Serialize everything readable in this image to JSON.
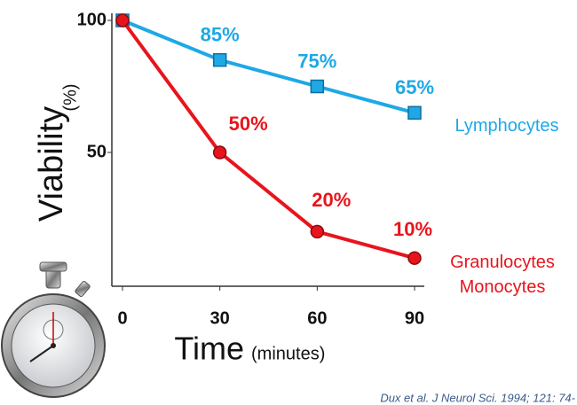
{
  "chart_data": {
    "type": "line",
    "y_label": "Viability",
    "y_unit": "(%)",
    "x_label": "Time",
    "x_unit": "(minutes)",
    "x": [
      0,
      30,
      60,
      90
    ],
    "xlim": [
      0,
      90
    ],
    "xticks": [
      0,
      30,
      60,
      90
    ],
    "ylim": [
      0,
      100
    ],
    "yticks": [
      100,
      50
    ],
    "series": [
      {
        "name": "Lymphocytes",
        "color": "#1ea8e6",
        "marker": "square",
        "values": [
          100,
          85,
          75,
          65
        ],
        "value_labels": [
          null,
          "85%",
          "75%",
          "65%"
        ]
      },
      {
        "name": "Granulocytes Monocytes",
        "color": "#e8141c",
        "marker": "circle",
        "values": [
          100,
          50,
          20,
          10
        ],
        "value_labels": [
          null,
          "50%",
          "20%",
          "10%"
        ]
      }
    ],
    "source": "Dux et al. J Neurol Sci. 1994; 121: 74-"
  }
}
